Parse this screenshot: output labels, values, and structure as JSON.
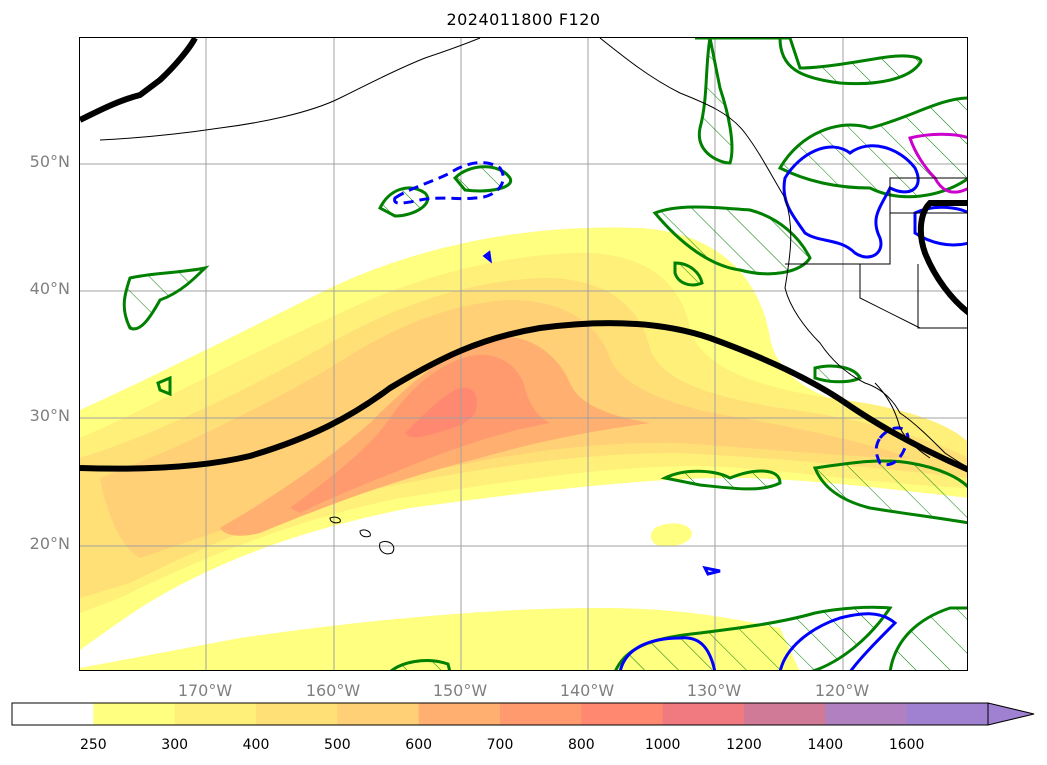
{
  "title": "2024011800 F120",
  "lat_labels": [
    "50°N",
    "40°N",
    "30°N",
    "20°N"
  ],
  "lon_labels": [
    "170°W",
    "160°W",
    "150°W",
    "140°W",
    "130°W",
    "120°W"
  ],
  "colorbar": {
    "ticks": [
      "250",
      "300",
      "400",
      "500",
      "600",
      "700",
      "800",
      "1000",
      "1200",
      "1400",
      "1600"
    ],
    "colors": [
      "#ffffff",
      "#ffff80",
      "#fff07a",
      "#ffe077",
      "#ffd075",
      "#ffb070",
      "#ff9a6e",
      "#ff8870",
      "#f07a80",
      "#d07a98",
      "#b080c0",
      "#a080d0"
    ],
    "extend": "max"
  },
  "layers": {
    "ivt_shading": "yellow-orange-red shading, values 250+",
    "ridge_line_color": "#000000",
    "green_hatched_color": "#008000",
    "blue_contour_color": "#0000ff",
    "magenta_contour_color": "#cc00cc"
  }
}
